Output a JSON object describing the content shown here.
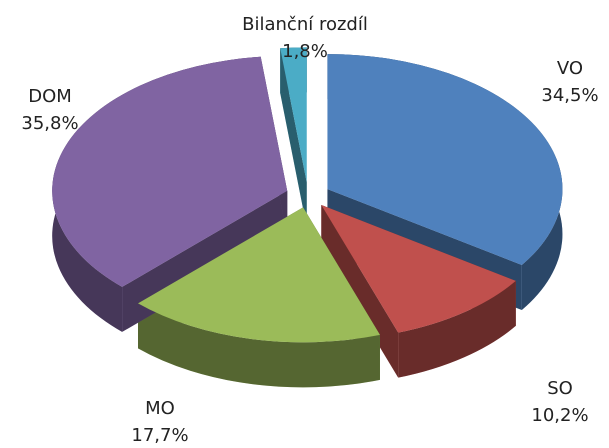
{
  "chart_data": {
    "type": "pie3d",
    "categories": [
      "VO",
      "SO",
      "MO",
      "DOM",
      "Bilanční rozdíl"
    ],
    "values": [
      34.5,
      10.2,
      17.7,
      35.8,
      1.8
    ],
    "value_labels": [
      "34,5%",
      "10,2%",
      "17,7%",
      "35,8%",
      "1,8%"
    ],
    "colors": [
      "#4f81bd",
      "#c0504d",
      "#9bbb59",
      "#8064a2",
      "#4bacc6"
    ]
  }
}
